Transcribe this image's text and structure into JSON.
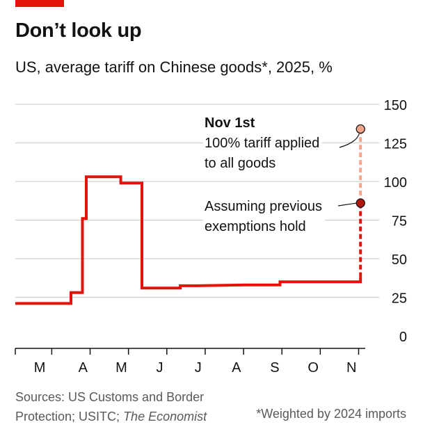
{
  "title": "Don’t look up",
  "subtitle": "US, average tariff on Chinese goods*, 2025, %",
  "footer": {
    "sources_prefix": "Sources: US Customs and Border Protection; USITC; ",
    "sources_italic": "The Economist",
    "note": "*Weighted by 2024 imports"
  },
  "annotations": {
    "nov_title": "Nov 1st",
    "nov_line1": "100% tariff applied",
    "nov_line2": "to all goods",
    "exempt_line1": "Assuming previous",
    "exempt_line2": "exemptions hold"
  },
  "colors": {
    "accent": "#e3120b",
    "light_accent": "#f4a58a",
    "grid": "#d0d0d0"
  },
  "chart_data": {
    "type": "line",
    "ylim": [
      0,
      150
    ],
    "yticks": [
      0,
      25,
      50,
      75,
      100,
      125,
      150
    ],
    "xlabels": [
      "M",
      "A",
      "M",
      "J",
      "J",
      "A",
      "S",
      "O",
      "N"
    ],
    "xlabel_month_pos": [
      3.0,
      4.0,
      5.0,
      6.0,
      7.0,
      8.0,
      9.0,
      10.0,
      11.0
    ],
    "x_month_ticks": [
      2.95,
      3.95,
      4.95,
      5.95,
      6.95,
      7.95,
      8.95,
      9.95,
      10.95
    ],
    "xlim": [
      2.0,
      11.05
    ],
    "series": [
      {
        "style": "solid",
        "points": [
          [
            2.0,
            21
          ],
          [
            3.45,
            21
          ],
          [
            3.45,
            28
          ],
          [
            3.75,
            28
          ],
          [
            3.75,
            76
          ],
          [
            3.85,
            76
          ],
          [
            3.85,
            103
          ],
          [
            4.75,
            103
          ],
          [
            4.75,
            99
          ],
          [
            5.3,
            99
          ],
          [
            5.3,
            31
          ],
          [
            6.3,
            31
          ],
          [
            6.3,
            32.5
          ],
          [
            6.75,
            32.5
          ],
          [
            8.0,
            33
          ],
          [
            8.9,
            33
          ],
          [
            8.9,
            35
          ],
          [
            11.0,
            35
          ],
          [
            11.0,
            38
          ]
        ]
      },
      {
        "style": "dashed",
        "points": [
          [
            11.0,
            38
          ],
          [
            11.0,
            86
          ]
        ]
      },
      {
        "style": "dashed-light",
        "points": [
          [
            11.0,
            86
          ],
          [
            11.0,
            134
          ]
        ]
      }
    ],
    "markers": [
      {
        "x": 11.0,
        "y": 86,
        "style": "dark"
      },
      {
        "x": 11.0,
        "y": 134,
        "style": "light"
      }
    ]
  }
}
